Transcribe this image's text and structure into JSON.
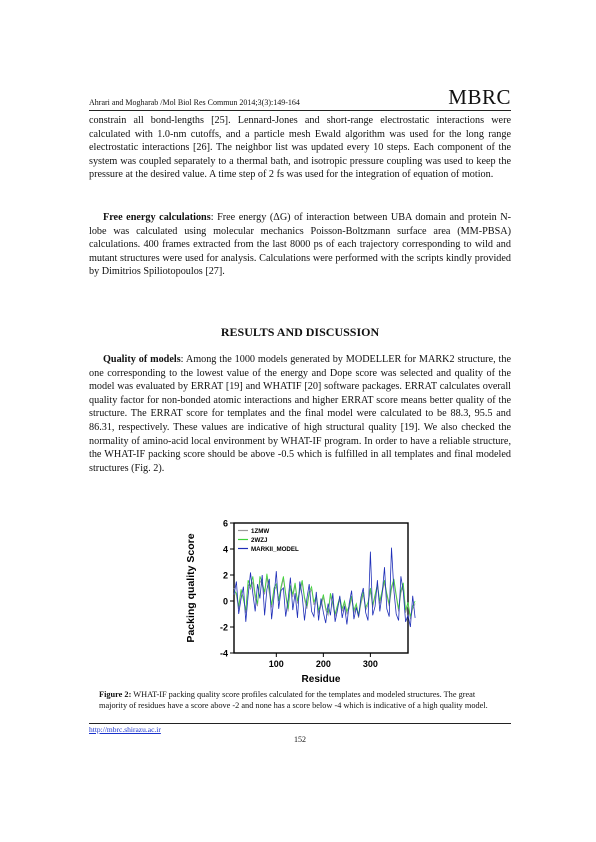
{
  "header": {
    "citation": "Ahrari  and  Mogharab /Mol Biol Res Commun 2014;3(3):149-164",
    "journal": "MBRC"
  },
  "paragraphs": {
    "p1": "constrain all bond-lengths [25]. Lennard-Jones and short-range electrostatic interactions were calculated with 1.0-nm cutoffs, and a particle mesh Ewald algorithm was used for the long range electrostatic interactions [26]. The neighbor list was updated every 10 steps. Each component of the system was coupled separately to a thermal bath, and isotropic pressure coupling was used to keep the pressure at the desired value. A time step of 2 fs was used for the integration of equation of motion.",
    "p2_lead": "Free energy calculations",
    "p2_body": ": Free energy (ΔG) of interaction between UBA domain and protein N-lobe was calculated using molecular mechanics Poisson-Boltzmann surface area (MM-PBSA) calculations. 400 frames extracted from the last 8000 ps of each trajectory corresponding to wild and mutant structures were used for analysis. Calculations were performed with the scripts kindly provided by Dimitrios Spiliotopoulos [27].",
    "section_heading": "RESULTS AND DISCUSSION",
    "p3_lead": "Quality of models",
    "p3_body": ": Among the 1000 models generated by MODELLER for MARK2 structure, the one corresponding to the lowest value of the energy and Dope score was selected and quality of the model was evaluated by ERRAT [19] and WHATIF [20] software packages. ERRAT calculates overall quality factor for non-bonded atomic interactions and higher ERRAT score means better quality of the structure. The ERRAT score for templates and the final model were calculated to be 88.3, 95.5 and 86.31, respectively. These values are indicative of high structural quality [19]. We also checked the normality of amino-acid local environment by WHAT-IF program. In order to have a reliable structure, the WHAT-IF packing score should be above -0.5 which is fulfilled in all templates and final modeled structures (Fig. 2)."
  },
  "figure": {
    "caption_label": "Figure 2:",
    "caption_text": " WHAT-IF packing quality score profiles calculated for the templates and modeled structures. The great majority of residues have a score above -2 and none has a score below -4 which is indicative of a high quality model."
  },
  "footer": {
    "link": "http://mbrc.shirazu.ac.ir",
    "page_number": "152"
  },
  "chart_data": {
    "type": "line",
    "title": "",
    "xlabel": "Residue",
    "ylabel": "Packing quality Score",
    "xlim": [
      10,
      380
    ],
    "ylim": [
      -4,
      6
    ],
    "x_ticks": [
      100,
      200,
      300
    ],
    "y_ticks": [
      -4,
      -2,
      0,
      2,
      4,
      6
    ],
    "grid": false,
    "legend_position": "top-left",
    "x_start": 10,
    "x_step": 5,
    "series": [
      {
        "name": "1ZMW",
        "color": "#9a9a9a",
        "values": [
          1.0,
          0.4,
          -0.6,
          0.7,
          0.3,
          -0.9,
          1.3,
          0.9,
          1.5,
          0.2,
          -0.4,
          1.6,
          1.2,
          0.5,
          1.8,
          0.6,
          -0.5,
          0.8,
          1.1,
          0.2,
          0.9,
          1.7,
          0.4,
          -0.8,
          1.0,
          0.3,
          1.2,
          -0.2,
          0.7,
          1.4,
          0.1,
          -0.6,
          0.5,
          0.9,
          -0.3,
          0.2,
          -0.9,
          -0.4,
          0.3,
          -0.7,
          -1.1,
          0.4,
          -0.3,
          -1.2,
          -0.5,
          0.1,
          -0.8,
          -0.2,
          -1.0,
          -0.6,
          0.2,
          -0.9,
          -0.4,
          -1.3,
          -0.2,
          0.5,
          -0.7,
          -0.3,
          0.8,
          -0.5,
          0.3,
          1.1,
          -0.2,
          0.6,
          1.4,
          0.4,
          -0.4,
          0.9,
          1.5,
          0.3,
          -0.8,
          0.6,
          1.2,
          -0.9,
          -0.3,
          -1.4,
          -0.6,
          -0.2
        ]
      },
      {
        "name": "2WZJ",
        "color": "#3fd23a",
        "values": [
          0.8,
          0.6,
          -0.4,
          0.9,
          0.1,
          -0.7,
          1.6,
          1.1,
          1.9,
          0.5,
          -0.2,
          1.9,
          1.4,
          0.7,
          2.1,
          0.9,
          -0.3,
          1.0,
          1.3,
          0.0,
          1.1,
          1.9,
          0.6,
          -0.6,
          1.2,
          0.5,
          1.4,
          0.0,
          0.9,
          1.6,
          0.3,
          -0.4,
          0.7,
          1.1,
          -0.1,
          0.4,
          -0.7,
          -0.2,
          0.5,
          -0.5,
          -0.9,
          0.6,
          -0.1,
          -1.0,
          -0.3,
          0.3,
          -0.6,
          0.0,
          -0.8,
          -0.4,
          0.4,
          -0.7,
          -0.2,
          -1.1,
          0.0,
          0.7,
          -0.5,
          -0.1,
          1.0,
          -0.3,
          0.5,
          1.3,
          0.0,
          0.8,
          1.6,
          0.6,
          -0.2,
          1.1,
          1.7,
          0.5,
          -0.6,
          0.8,
          1.4,
          -0.7,
          -0.1,
          -1.2,
          -0.4,
          0.0
        ]
      },
      {
        "name": "MARKII_MODEL",
        "color": "#1f2fb8",
        "values": [
          0.5,
          1.5,
          -1.0,
          0.2,
          1.1,
          -1.6,
          0.4,
          2.2,
          0.6,
          -0.8,
          1.3,
          0.2,
          2.0,
          -1.1,
          0.9,
          1.7,
          -1.4,
          0.3,
          2.3,
          -0.6,
          0.8,
          1.0,
          -1.2,
          0.1,
          1.8,
          -0.7,
          0.6,
          -1.3,
          1.5,
          0.4,
          -1.5,
          0.2,
          1.3,
          -0.8,
          -1.2,
          0.7,
          -1.5,
          0.2,
          -0.9,
          -1.7,
          -0.2,
          -1.1,
          0.6,
          -1.6,
          -0.7,
          0.4,
          -1.3,
          -0.4,
          -1.8,
          -0.2,
          0.8,
          -1.4,
          -0.5,
          -1.2,
          0.3,
          1.0,
          -0.9,
          -1.5,
          3.8,
          -1.1,
          -0.4,
          1.6,
          -0.8,
          0.5,
          2.6,
          -0.6,
          -1.2,
          4.1,
          0.8,
          -1.0,
          -1.5,
          1.9,
          0.7,
          -1.6,
          -1.1,
          -2.0,
          0.4,
          -1.3
        ]
      }
    ]
  }
}
